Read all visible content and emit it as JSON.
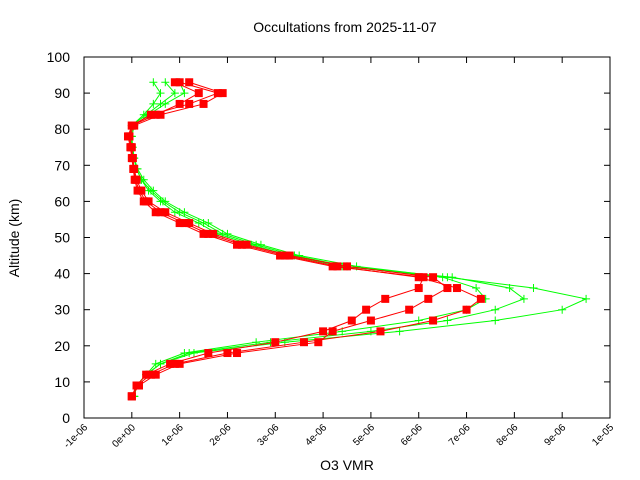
{
  "chart_data": {
    "type": "line",
    "title": "Occultations from 2025-11-07",
    "xlabel": "O3 VMR",
    "ylabel": "Altitude (km)",
    "xlim": [
      -1e-06,
      1e-05
    ],
    "ylim": [
      0,
      100
    ],
    "grid": false,
    "legend": "none",
    "x_ticks": [
      "-1e-06",
      "0e+00",
      "1e-06",
      "2e-06",
      "3e-06",
      "4e-06",
      "5e-06",
      "6e-06",
      "7e-06",
      "8e-06",
      "9e-06",
      "1e-05"
    ],
    "x_tick_values": [
      -1e-06,
      0,
      1e-06,
      2e-06,
      3e-06,
      4e-06,
      5e-06,
      6e-06,
      7e-06,
      8e-06,
      9e-06,
      1e-05
    ],
    "y_ticks": [
      "0",
      "10",
      "20",
      "30",
      "40",
      "50",
      "60",
      "70",
      "80",
      "90",
      "100"
    ],
    "y_tick_values": [
      0,
      10,
      20,
      30,
      40,
      50,
      60,
      70,
      80,
      90,
      100
    ],
    "altitude": [
      6,
      9,
      12,
      15,
      18,
      21,
      24,
      27,
      30,
      33,
      36,
      39,
      42,
      45,
      48,
      51,
      54,
      57,
      60,
      63,
      66,
      69,
      72,
      75,
      78,
      81,
      84,
      87,
      90,
      93
    ],
    "series": [
      {
        "color": "#00ff00",
        "marker": "plus",
        "values": [
          5e-08,
          1e-07,
          3e-07,
          6e-07,
          1.3e-06,
          3.2e-06,
          5.6e-06,
          7.6e-06,
          9e-06,
          9.5e-06,
          8.4e-06,
          6.6e-06,
          4.7e-06,
          3.5e-06,
          2.7e-06,
          2e-06,
          1.6e-06,
          1.1e-06,
          7e-07,
          4.5e-07,
          2.5e-07,
          1.2e-07,
          5e-08,
          2e-08,
          0,
          0,
          2.5e-07,
          4.5e-07,
          6e-07,
          4.5e-07
        ]
      },
      {
        "color": "#00ff00",
        "marker": "plus",
        "values": [
          5e-08,
          1e-07,
          3e-07,
          6e-07,
          1.2e-06,
          2.9e-06,
          5e-06,
          6.6e-06,
          7.6e-06,
          8.2e-06,
          7.9e-06,
          6.7e-06,
          4.5e-06,
          3.4e-06,
          2.6e-06,
          1.9e-06,
          1.5e-06,
          1e-06,
          6.5e-07,
          4e-07,
          2e-07,
          1e-07,
          5e-08,
          0,
          -2e-08,
          0,
          3e-07,
          6e-07,
          9e-07,
          7e-07
        ]
      },
      {
        "color": "#00ff00",
        "marker": "plus",
        "values": [
          5e-08,
          1e-07,
          3e-07,
          5e-07,
          1.1e-06,
          2.6e-06,
          4.4e-06,
          6e-06,
          7e-06,
          7.4e-06,
          7.2e-06,
          6.5e-06,
          4.4e-06,
          3.3e-06,
          2.5e-06,
          1.8e-06,
          1.4e-06,
          9e-07,
          6e-07,
          3.5e-07,
          2e-07,
          1e-07,
          4e-08,
          0,
          0,
          5e-08,
          3.5e-07,
          7e-07,
          1.1e-06,
          1e-06
        ]
      },
      {
        "color": "#ff0000",
        "marker": "square",
        "values": [
          0,
          1e-07,
          4e-07,
          9e-07,
          2e-06,
          3.6e-06,
          5.2e-06,
          6.3e-06,
          7e-06,
          7.3e-06,
          6.8e-06,
          6e-06,
          4.3e-06,
          3.2e-06,
          2.3e-06,
          1.6e-06,
          1.1e-06,
          6e-07,
          3e-07,
          1.5e-07,
          8e-08,
          4e-08,
          2e-08,
          0,
          -5e-08,
          0,
          4e-07,
          1.2e-06,
          1.8e-06,
          1e-06
        ]
      },
      {
        "color": "#ff0000",
        "marker": "square",
        "values": [
          0,
          1.5e-07,
          5e-07,
          1e-06,
          2.2e-06,
          3.9e-06,
          4.2e-06,
          5e-06,
          5.8e-06,
          6.2e-06,
          6.6e-06,
          6.3e-06,
          4.5e-06,
          3.3e-06,
          2.4e-06,
          1.7e-06,
          1.2e-06,
          7e-07,
          3.5e-07,
          2e-07,
          1e-07,
          5e-08,
          2e-08,
          -2e-08,
          -5e-08,
          5e-08,
          6e-07,
          1.5e-06,
          1.9e-06,
          1.2e-06
        ]
      },
      {
        "color": "#ff0000",
        "marker": "square",
        "values": [
          0,
          1e-07,
          3e-07,
          8e-07,
          1.6e-06,
          3e-06,
          4e-06,
          4.6e-06,
          4.9e-06,
          5.3e-06,
          6e-06,
          6.1e-06,
          4.2e-06,
          3.1e-06,
          2.2e-06,
          1.5e-06,
          1e-06,
          5e-07,
          2.5e-07,
          1.2e-07,
          6e-08,
          3e-08,
          0,
          -3e-08,
          -8e-08,
          0,
          5e-07,
          1e-06,
          1.4e-06,
          9e-07
        ]
      }
    ]
  }
}
